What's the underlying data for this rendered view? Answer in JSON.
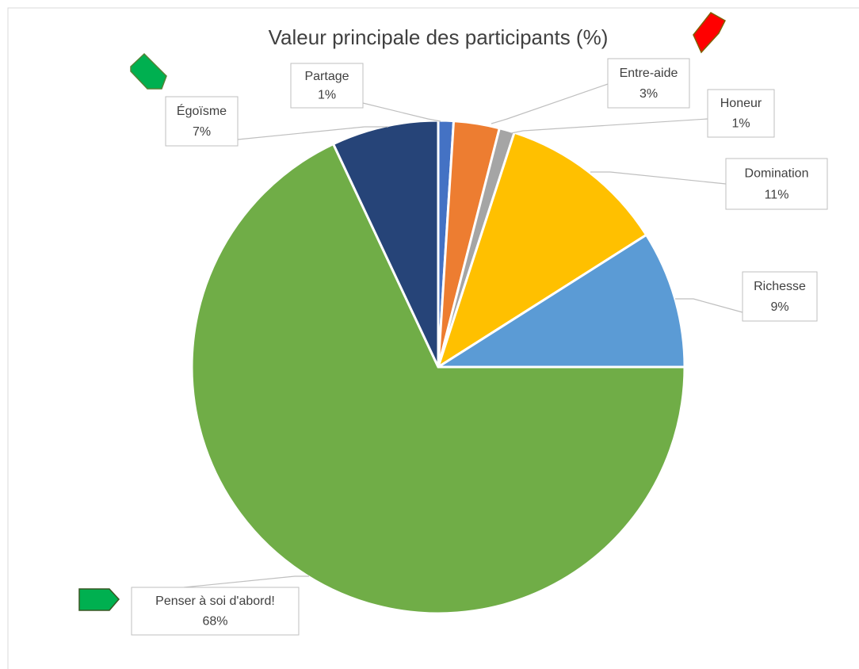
{
  "chart_data": {
    "type": "pie",
    "title": "Valeur principale des participants (%)",
    "categories": [
      "Partage",
      "Entre-aide",
      "Honeur",
      "Domination",
      "Richesse",
      "Penser à soi d'abord!",
      "Égoïsme"
    ],
    "values": [
      1,
      3,
      1,
      11,
      9,
      68,
      7
    ],
    "value_labels": [
      "1%",
      "3%",
      "1%",
      "11%",
      "9%",
      "68%",
      "7%"
    ],
    "colors": [
      "#4472c4",
      "#ed7d31",
      "#a5a5a5",
      "#ffc000",
      "#5b9bd5",
      "#70ad47",
      "#264478"
    ]
  }
}
